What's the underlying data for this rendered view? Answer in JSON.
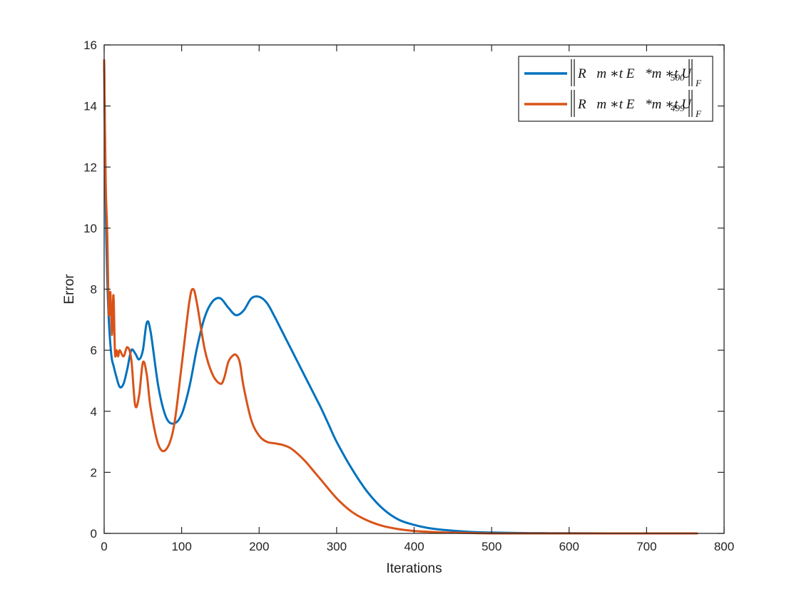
{
  "chart_data": {
    "type": "line",
    "title": "",
    "xlabel": "Iterations",
    "ylabel": "Error",
    "xlim": [
      0,
      800
    ],
    "ylim": [
      0,
      16
    ],
    "xticks": [
      0,
      100,
      200,
      300,
      400,
      500,
      600,
      700,
      800
    ],
    "yticks": [
      0,
      2,
      4,
      6,
      8,
      10,
      12,
      14,
      16
    ],
    "grid": false,
    "legend_position": "top-right",
    "series": [
      {
        "name": "‖R_m *_t E*_m *_t U_500‖_F",
        "legend_main": "R⃗m ∗t E⃗*m ∗t U⃗",
        "legend_sub": "500",
        "legend_norm": "F",
        "color": "#0072BD",
        "x": [
          0,
          2,
          4,
          6,
          8,
          10,
          12,
          15,
          20,
          25,
          30,
          35,
          40,
          45,
          50,
          55,
          60,
          70,
          80,
          90,
          100,
          110,
          120,
          130,
          140,
          150,
          160,
          170,
          180,
          190,
          200,
          210,
          220,
          230,
          240,
          250,
          260,
          270,
          280,
          290,
          300,
          320,
          340,
          360,
          380,
          400,
          420,
          440,
          460,
          480,
          500,
          550,
          600,
          650,
          700,
          765
        ],
        "y": [
          15.5,
          10.8,
          8.4,
          7.0,
          6.2,
          5.7,
          5.5,
          5.2,
          4.8,
          4.9,
          5.4,
          6.0,
          5.9,
          5.7,
          6.0,
          6.9,
          6.6,
          4.8,
          3.8,
          3.6,
          3.9,
          4.8,
          6.1,
          7.1,
          7.6,
          7.7,
          7.4,
          7.15,
          7.3,
          7.7,
          7.75,
          7.55,
          7.1,
          6.6,
          6.1,
          5.6,
          5.1,
          4.6,
          4.1,
          3.55,
          3.0,
          2.1,
          1.35,
          0.8,
          0.45,
          0.28,
          0.17,
          0.11,
          0.07,
          0.04,
          0.03,
          0.01,
          0.005,
          0.0,
          0.0,
          0.0
        ]
      },
      {
        "name": "‖R_m *_t E*_m *_t U_499‖_F",
        "legend_main": "R⃗m ∗t E⃗*m ∗t U⃗",
        "legend_sub": "499",
        "legend_norm": "F",
        "color": "#D95319",
        "x": [
          0,
          2,
          4,
          6,
          8,
          10,
          12,
          14,
          16,
          18,
          20,
          25,
          30,
          35,
          40,
          45,
          50,
          55,
          60,
          70,
          80,
          90,
          100,
          110,
          115,
          120,
          130,
          140,
          150,
          155,
          160,
          165,
          170,
          175,
          180,
          190,
          200,
          210,
          220,
          230,
          240,
          250,
          260,
          270,
          280,
          300,
          320,
          340,
          360,
          380,
          400,
          420,
          440,
          460,
          480,
          500,
          550,
          600,
          650,
          700,
          765
        ],
        "y": [
          15.5,
          11.5,
          9.8,
          7.2,
          7.9,
          6.5,
          7.8,
          5.9,
          6.0,
          5.8,
          6.0,
          5.8,
          6.1,
          5.7,
          4.2,
          4.5,
          5.6,
          5.2,
          4.1,
          2.9,
          2.75,
          3.5,
          5.5,
          7.6,
          8.0,
          7.5,
          6.0,
          5.2,
          4.9,
          5.1,
          5.6,
          5.8,
          5.85,
          5.6,
          4.8,
          3.7,
          3.2,
          3.0,
          2.95,
          2.9,
          2.8,
          2.6,
          2.35,
          2.05,
          1.75,
          1.15,
          0.7,
          0.42,
          0.24,
          0.14,
          0.08,
          0.05,
          0.03,
          0.02,
          0.01,
          0.0,
          0.0,
          0.0,
          0.0,
          0.0,
          0.0
        ]
      }
    ]
  }
}
